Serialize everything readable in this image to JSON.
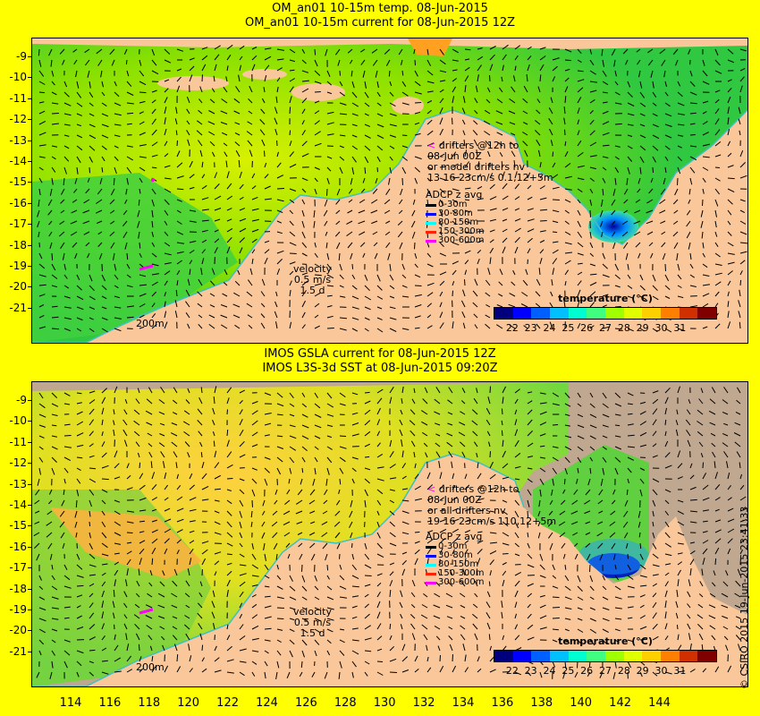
{
  "panel1": {
    "title1": "OM_an01 10-15m temp. 08-Jun-2015",
    "title2": "OM_an01 10-15m current for 08-Jun-2015 12Z",
    "drifters": {
      "line1": "drifters @12h to",
      "line2": "08-Jun 00Z",
      "line3": "or model drifters nv",
      "line4": "13   16   23cm/s 0.1,12+5m"
    },
    "velocity": {
      "line1": "velocity",
      "line2": "0.5 m/s",
      "line3": "1.5 d"
    },
    "scale_label": "200m"
  },
  "panel2": {
    "title1": "IMOS GSLA current for 08-Jun-2015 12Z",
    "title2": "IMOS L3S-3d SST at 08-Jun-2015 09:20Z",
    "drifters": {
      "line1": "drifters @12h to",
      "line2": "08-Jun 00Z",
      "line3": "or all drifters nv",
      "line4": "19 16 23cm/s 110,12+5m"
    },
    "velocity": {
      "line1": "velocity",
      "line2": "0.5 m/s",
      "line3": "1.5 d"
    },
    "scale_label": "200m"
  },
  "adcp": {
    "title": "ADCP z avg",
    "rows": [
      {
        "label": "0-30m",
        "color": "#000000"
      },
      {
        "label": "30-80m",
        "color": "#0000ff"
      },
      {
        "label": "80-150m",
        "color": "#00ffff"
      },
      {
        "label": "150-300m",
        "color": "#ff2200"
      },
      {
        "label": "300-600m",
        "color": "#ff00ff"
      }
    ]
  },
  "colorbar": {
    "title": "temperature (°C)",
    "ticks": [
      "22",
      "23",
      "24",
      "25",
      "26",
      "27",
      "28",
      "29",
      "30",
      "31"
    ],
    "colors": [
      "#00007f",
      "#0000ff",
      "#0060ff",
      "#00c0ff",
      "#00ffd0",
      "#40ff80",
      "#a0ff00",
      "#e0ff00",
      "#ffd000",
      "#ff8000",
      "#d03000",
      "#800000"
    ]
  },
  "y_axis": [
    "-9",
    "-10",
    "-11",
    "-12",
    "-13",
    "-14",
    "-15",
    "-16",
    "-17",
    "-18",
    "-19",
    "-20",
    "-21"
  ],
  "x_axis": [
    "114",
    "116",
    "118",
    "120",
    "122",
    "124",
    "126",
    "128",
    "130",
    "132",
    "134",
    "136",
    "138",
    "140",
    "142",
    "144"
  ],
  "credit": "© CSIRO 2015  19-Jun-2015 23:41:33"
}
